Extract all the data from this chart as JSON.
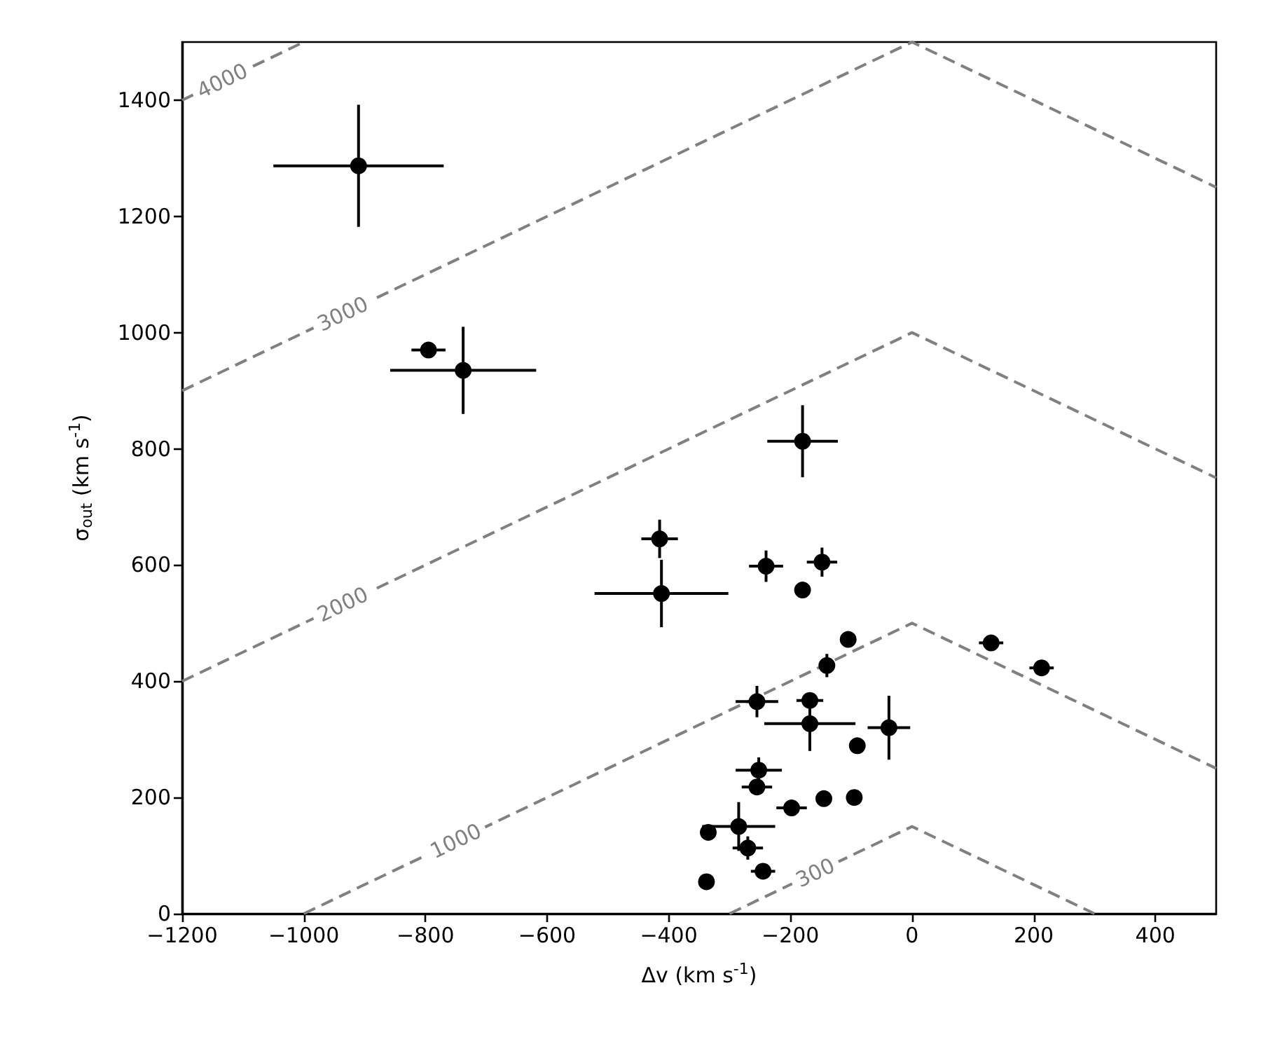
{
  "chart_data": {
    "type": "scatter",
    "xlabel": "Δv (km s$^{-1}$)",
    "ylabel": "σ$_{out}$ (km s$^{-1}$)",
    "xlim": [
      -1200,
      500
    ],
    "ylim": [
      0,
      1500
    ],
    "xticks": [
      {
        "value": -1200,
        "label": "−1200"
      },
      {
        "value": -1000,
        "label": "−1000"
      },
      {
        "value": -800,
        "label": "−800"
      },
      {
        "value": -600,
        "label": "−600"
      },
      {
        "value": -400,
        "label": "−400"
      },
      {
        "value": -200,
        "label": "−200"
      },
      0,
      200,
      400
    ],
    "yticks": [
      0,
      200,
      400,
      600,
      800,
      1000,
      1200,
      1400
    ],
    "grid": false,
    "legend": false,
    "series": [
      {
        "type": "line",
        "name": "4000",
        "color": "#808080",
        "line_style": "dashed",
        "marker": "none",
        "x": [
          -1200,
          -1000
        ],
        "values": [
          1400,
          1500
        ]
      },
      {
        "type": "line",
        "name": "3000",
        "color": "#808080",
        "line_style": "dashed",
        "marker": "none",
        "x": [
          -1200,
          0,
          500
        ],
        "values": [
          900,
          1500,
          1250
        ]
      },
      {
        "type": "line",
        "name": "2000",
        "color": "#808080",
        "line_style": "dashed",
        "marker": "none",
        "x": [
          -1200,
          0,
          500
        ],
        "values": [
          400,
          1000,
          750
        ]
      },
      {
        "type": "line",
        "name": "1000",
        "color": "#808080",
        "line_style": "dashed",
        "marker": "none",
        "x": [
          -1000,
          0,
          500
        ],
        "values": [
          0,
          500,
          250
        ]
      },
      {
        "type": "line",
        "name": "300",
        "color": "#808080",
        "line_style": "dashed",
        "marker": "none",
        "x": [
          -300,
          0,
          300
        ],
        "values": [
          0,
          150,
          0
        ]
      },
      {
        "color": "#000000",
        "marker": "circle",
        "x": [
          -910,
          -795,
          -738,
          -180,
          -415,
          -412,
          -240,
          -148,
          -180,
          -105,
          130,
          213,
          -140,
          -255,
          -168,
          -168,
          -38,
          -90,
          -252,
          -255,
          -198,
          -145,
          -95,
          -335,
          -285,
          -270,
          -245,
          -338
        ],
        "values": [
          1287,
          970,
          935,
          813,
          645,
          551,
          598,
          605,
          557,
          472,
          466,
          423,
          427,
          365,
          367,
          327,
          320,
          289,
          247,
          218,
          182,
          198,
          200,
          140,
          150,
          113,
          73,
          55
        ],
        "errors": [
          105,
          null,
          75,
          62,
          33,
          58,
          27,
          25,
          null,
          null,
          null,
          null,
          20,
          27,
          null,
          47,
          55,
          null,
          22,
          null,
          null,
          null,
          null,
          null,
          42,
          20,
          null,
          null
        ],
        "xerrors": [
          140,
          28,
          120,
          58,
          30,
          110,
          28,
          25,
          null,
          null,
          20,
          20,
          null,
          35,
          22,
          75,
          35,
          null,
          38,
          25,
          25,
          null,
          null,
          null,
          60,
          25,
          20,
          null
        ]
      }
    ]
  }
}
